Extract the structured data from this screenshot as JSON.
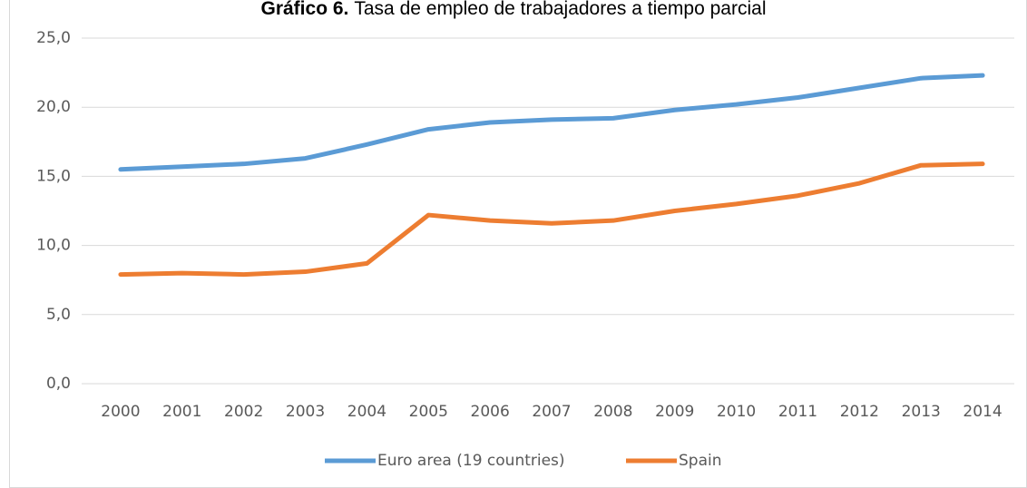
{
  "chart_data": {
    "type": "line",
    "title_label": "Gráfico 6.",
    "title": "Tasa de empleo de trabajadores a tiempo parcial",
    "categories": [
      "2000",
      "2001",
      "2002",
      "2003",
      "2004",
      "2005",
      "2006",
      "2007",
      "2008",
      "2009",
      "2010",
      "2011",
      "2012",
      "2013",
      "2014"
    ],
    "series": [
      {
        "name": "Euro area (19 countries)",
        "color": "#5b9bd5",
        "values": [
          15.5,
          15.7,
          15.9,
          16.3,
          17.3,
          18.4,
          18.9,
          19.1,
          19.2,
          19.8,
          20.2,
          20.7,
          21.4,
          22.1,
          22.3
        ]
      },
      {
        "name": "Spain",
        "color": "#ed7d31",
        "values": [
          7.9,
          8.0,
          7.9,
          8.1,
          8.7,
          12.2,
          11.8,
          11.6,
          11.8,
          12.5,
          13.0,
          13.6,
          14.5,
          15.8,
          15.9
        ]
      }
    ],
    "ylim": [
      0,
      25
    ],
    "yticks": [
      {
        "value": 0,
        "label": "0,0"
      },
      {
        "value": 5,
        "label": "5,0"
      },
      {
        "value": 10,
        "label": "10,0"
      },
      {
        "value": 15,
        "label": "15,0"
      },
      {
        "value": 20,
        "label": "20,0"
      },
      {
        "value": 25,
        "label": "25,0"
      }
    ],
    "grid": true,
    "legend": "bottom"
  }
}
